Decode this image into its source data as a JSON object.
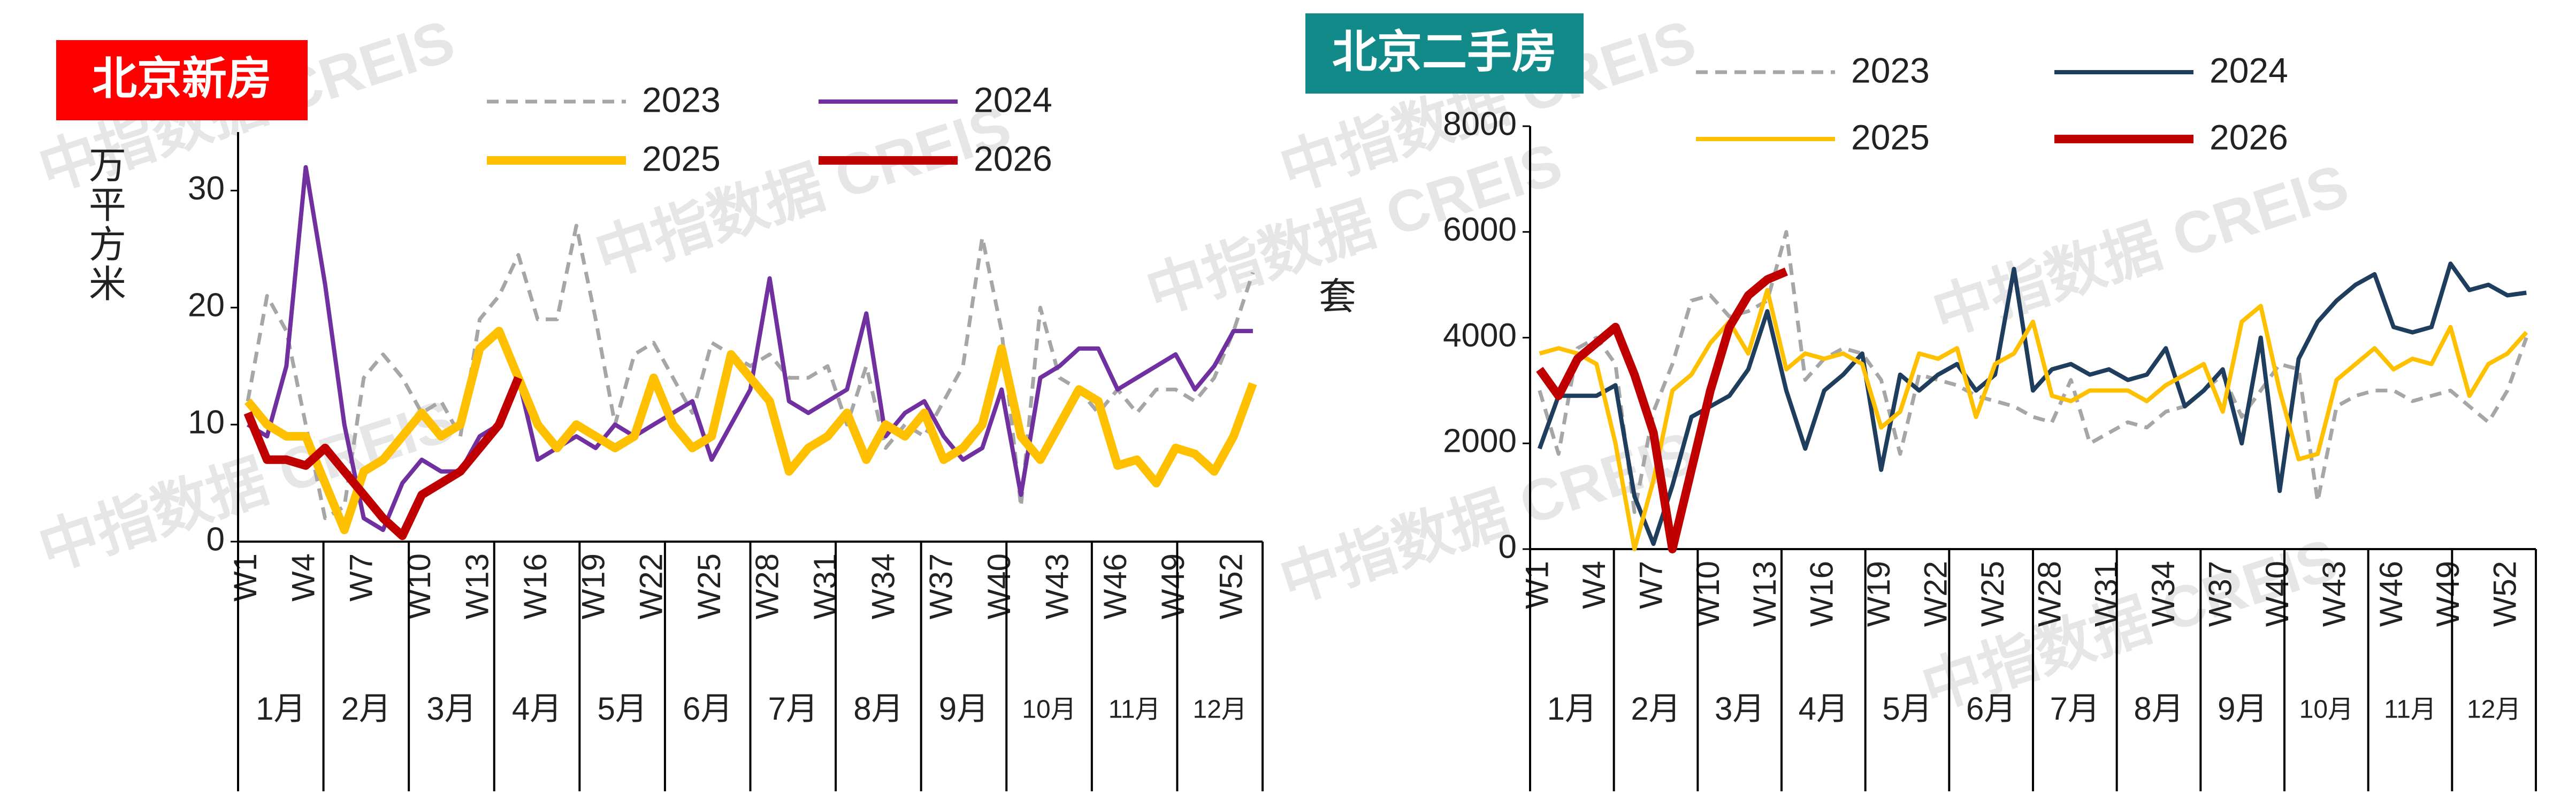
{
  "watermark": "中指数据 CREIS",
  "chart_data": [
    {
      "type": "line",
      "title": "北京新房",
      "title_color": "#ff0000",
      "y_label": "万平方米",
      "categories": [
        "W1",
        null,
        null,
        "W4",
        null,
        null,
        "W7",
        null,
        null,
        "W10",
        null,
        null,
        "W13",
        null,
        null,
        "W16",
        null,
        null,
        "W19",
        null,
        null,
        "W22",
        null,
        null,
        "W25",
        null,
        null,
        "W28",
        null,
        null,
        "W31",
        null,
        null,
        "W34",
        null,
        null,
        "W37",
        null,
        null,
        "W40",
        null,
        null,
        "W43",
        null,
        null,
        "W46",
        null,
        null,
        "W49",
        null,
        null,
        "W52",
        null
      ],
      "months": [
        "1月",
        "2月",
        "3月",
        "4月",
        "5月",
        "6月",
        "7月",
        "8月",
        "9月",
        "10月",
        "11月",
        "12月"
      ],
      "ylim": [
        0,
        35
      ],
      "yticks": [
        0,
        10,
        20,
        30
      ],
      "series": [
        {
          "name": "2023",
          "color": "#a6a6a6",
          "style": "dashed",
          "values": [
            12,
            21,
            18,
            10,
            2,
            3,
            14,
            16,
            14,
            11,
            12,
            9,
            19,
            21,
            24.5,
            19,
            19,
            27,
            19,
            10,
            16,
            17,
            14,
            11,
            17,
            16,
            15,
            16,
            14,
            14,
            15,
            10,
            15,
            8,
            10,
            9,
            12,
            15,
            26,
            18,
            3,
            20,
            14,
            13,
            11,
            13,
            11,
            13,
            13,
            12,
            14,
            18,
            23
          ]
        },
        {
          "name": "2024",
          "color": "#7030a0",
          "style": "solid",
          "values": [
            10,
            9,
            15,
            32,
            22,
            10,
            2,
            1,
            5,
            7,
            6,
            6,
            9,
            10,
            14,
            7,
            8,
            9,
            8,
            10,
            9,
            10,
            11,
            12,
            7,
            10,
            13,
            22.5,
            12,
            11,
            12,
            13,
            19.5,
            9,
            11,
            12,
            9,
            7,
            8,
            13,
            4,
            14,
            15,
            16.5,
            16.5,
            13,
            14,
            15,
            16,
            13,
            15,
            18,
            18
          ]
        },
        {
          "name": "2025",
          "color": "#ffc000",
          "style": "bold",
          "values": [
            12,
            10,
            9,
            9,
            5,
            1,
            6,
            7,
            9,
            11,
            9,
            10,
            16.5,
            18,
            14,
            10,
            8,
            10,
            9,
            8,
            9,
            14,
            10,
            8,
            9,
            16,
            14,
            12,
            6,
            8,
            9,
            11,
            7,
            10,
            9,
            11,
            7,
            8,
            10,
            16.5,
            9,
            7,
            10,
            13,
            12,
            6.5,
            7,
            5,
            8,
            7.5,
            6,
            9,
            13.5
          ]
        },
        {
          "name": "2026",
          "color": "#c00000",
          "style": "bold",
          "values": [
            11,
            7,
            7,
            6.5,
            8,
            6,
            4,
            2,
            0.5,
            4,
            5,
            6,
            8,
            10,
            14,
            null,
            null,
            null,
            null,
            null,
            null,
            null,
            null,
            null,
            null,
            null,
            null,
            null,
            null,
            null,
            null,
            null,
            null,
            null,
            null,
            null,
            null,
            null,
            null,
            null,
            null,
            null,
            null,
            null,
            null,
            null,
            null,
            null,
            null,
            null,
            null,
            null,
            null
          ]
        }
      ]
    },
    {
      "type": "line",
      "title": "北京二手房",
      "title_color": "#138a8a",
      "y_label": "套",
      "categories": [
        "W1",
        null,
        null,
        "W4",
        null,
        null,
        "W7",
        null,
        null,
        "W10",
        null,
        null,
        "W13",
        null,
        null,
        "W16",
        null,
        null,
        "W19",
        null,
        null,
        "W22",
        null,
        null,
        "W25",
        null,
        null,
        "W28",
        null,
        null,
        "W31",
        null,
        null,
        "W34",
        null,
        null,
        "W37",
        null,
        null,
        "W40",
        null,
        null,
        "W43",
        null,
        null,
        "W46",
        null,
        null,
        "W49",
        null,
        null,
        "W52",
        null
      ],
      "months": [
        "1月",
        "2月",
        "3月",
        "4月",
        "5月",
        "6月",
        "7月",
        "8月",
        "9月",
        "10月",
        "11月",
        "12月"
      ],
      "ylim": [
        0,
        8000
      ],
      "yticks": [
        0,
        2000,
        4000,
        6000,
        8000
      ],
      "series": [
        {
          "name": "2023",
          "color": "#a6a6a6",
          "style": "dashed",
          "values": [
            3000,
            1800,
            3800,
            4000,
            3500,
            700,
            2600,
            3500,
            4700,
            4800,
            4400,
            4500,
            4700,
            6000,
            3200,
            3600,
            3800,
            3700,
            3200,
            1800,
            3300,
            3200,
            3100,
            2900,
            2800,
            2700,
            2500,
            2400,
            3200,
            2000,
            2200,
            2400,
            2300,
            2600,
            2700,
            3000,
            3300,
            2500,
            3000,
            3500,
            3400,
            900,
            2700,
            2900,
            3000,
            3000,
            2800,
            2900,
            3000,
            2700,
            2400,
            3000,
            4000
          ]
        },
        {
          "name": "2024",
          "color": "#1f3d5c",
          "style": "solid",
          "values": [
            1900,
            2900,
            2900,
            2900,
            3100,
            1000,
            100,
            1200,
            2500,
            2700,
            2900,
            3400,
            4500,
            3000,
            1900,
            3000,
            3300,
            3700,
            1500,
            3300,
            3000,
            3300,
            3500,
            3000,
            3300,
            5300,
            3000,
            3400,
            3500,
            3300,
            3400,
            3200,
            3300,
            3800,
            2700,
            3000,
            3400,
            2000,
            4000,
            1100,
            3600,
            4300,
            4700,
            5000,
            5200,
            4200,
            4100,
            4200,
            5400,
            4900,
            5000,
            4800,
            4850
          ]
        },
        {
          "name": "2025",
          "color": "#ffc000",
          "style": "solid",
          "values": [
            3700,
            3800,
            3700,
            3500,
            2000,
            0,
            1300,
            3000,
            3300,
            3900,
            4300,
            3700,
            4900,
            3400,
            3700,
            3600,
            3700,
            3500,
            2300,
            2600,
            3700,
            3600,
            3800,
            2500,
            3500,
            3700,
            4300,
            2900,
            2800,
            3000,
            3000,
            3000,
            2800,
            3100,
            3300,
            3500,
            2600,
            4300,
            4600,
            3000,
            1700,
            1800,
            3200,
            3500,
            3800,
            3400,
            3600,
            3500,
            4200,
            2900,
            3500,
            3700,
            4100
          ]
        },
        {
          "name": "2026",
          "color": "#c00000",
          "style": "bold",
          "values": [
            3400,
            2900,
            3600,
            3900,
            4200,
            3300,
            2200,
            0,
            1500,
            3000,
            4200,
            4800,
            5100,
            5250,
            null,
            null,
            null,
            null,
            null,
            null,
            null,
            null,
            null,
            null,
            null,
            null,
            null,
            null,
            null,
            null,
            null,
            null,
            null,
            null,
            null,
            null,
            null,
            null,
            null,
            null,
            null,
            null,
            null,
            null,
            null,
            null,
            null,
            null,
            null,
            null,
            null,
            null,
            null
          ]
        }
      ]
    }
  ]
}
